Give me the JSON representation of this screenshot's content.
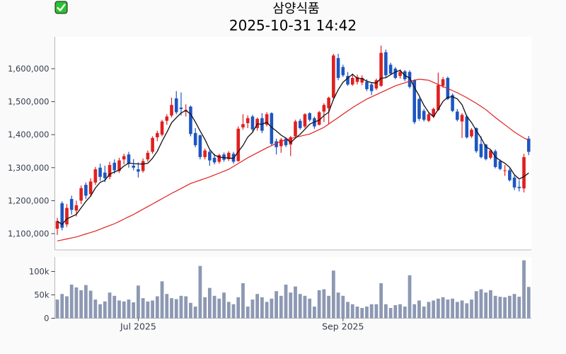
{
  "header": {
    "title": "삼양식품",
    "checkbox_icon": "white-check-on-green-square",
    "datetime": "2025-10-31 14:42"
  },
  "colors": {
    "up_candle": "#e01f1f",
    "down_candle": "#1e56c0",
    "ma_short": "#111111",
    "ma_long": "#e02020",
    "volume_bar": "#8d98b3",
    "plot_bg": "#ffffff",
    "page_bg": "#fafafa",
    "spine": "#b8b8b8",
    "tick_mark": "#444444",
    "tick_text": "#363c4e",
    "check_green": "#28c32d"
  },
  "chart_data": {
    "type": "candlestick+volume",
    "symbol": "삼양식품",
    "as_of": "2025-10-31 14:42",
    "legend_position": "none",
    "grid": false,
    "price_axis": {
      "ticks": [
        1600000,
        1500000,
        1400000,
        1300000,
        1200000,
        1100000
      ],
      "tick_labels": [
        "1,600,000",
        "1,500,000",
        "1,400,000",
        "1,300,000",
        "1,200,000",
        "1,100,000"
      ],
      "range": [
        1055000,
        1690000
      ]
    },
    "volume_axis": {
      "ticks": [
        100000,
        50000,
        0
      ],
      "tick_labels": [
        "100k",
        "50k",
        "0"
      ],
      "range": [
        0,
        131000
      ]
    },
    "x_axis": {
      "tick_labels": [
        "Jul 2025",
        "Sep 2025"
      ],
      "tick_candle_index": [
        17,
        60
      ]
    },
    "ma_short_window": 5,
    "ma_long_window": 20,
    "ma_long_anchors": [
      [
        0,
        1078000
      ],
      [
        4,
        1090000
      ],
      [
        8,
        1108000
      ],
      [
        12,
        1130000
      ],
      [
        16,
        1158000
      ],
      [
        20,
        1190000
      ],
      [
        24,
        1222000
      ],
      [
        28,
        1252000
      ],
      [
        32,
        1272000
      ],
      [
        36,
        1295000
      ],
      [
        40,
        1330000
      ],
      [
        44,
        1360000
      ],
      [
        47,
        1380000
      ],
      [
        50,
        1392000
      ],
      [
        53,
        1402000
      ],
      [
        56,
        1422000
      ],
      [
        58,
        1442000
      ],
      [
        60,
        1462000
      ],
      [
        62,
        1482000
      ],
      [
        65,
        1508000
      ],
      [
        68,
        1528000
      ],
      [
        71,
        1548000
      ],
      [
        74,
        1562000
      ],
      [
        76,
        1568000
      ],
      [
        78,
        1565000
      ],
      [
        80,
        1552000
      ],
      [
        82,
        1540000
      ],
      [
        84,
        1527000
      ],
      [
        86,
        1512000
      ],
      [
        88,
        1495000
      ],
      [
        90,
        1476000
      ],
      [
        92,
        1452000
      ],
      [
        94,
        1430000
      ],
      [
        96,
        1408000
      ],
      [
        98,
        1390000
      ],
      [
        99,
        1383000
      ]
    ],
    "candles_format": [
      "open",
      "high",
      "low",
      "close",
      "volume"
    ],
    "candles": [
      [
        1115000,
        1148000,
        1096000,
        1138000,
        40000
      ],
      [
        1192000,
        1198000,
        1110000,
        1118000,
        52000
      ],
      [
        1128000,
        1190000,
        1120000,
        1178000,
        47000
      ],
      [
        1205000,
        1215000,
        1158000,
        1172000,
        72000
      ],
      [
        1170000,
        1200000,
        1152000,
        1186000,
        66000
      ],
      [
        1200000,
        1246000,
        1190000,
        1238000,
        60000
      ],
      [
        1248000,
        1255000,
        1205000,
        1215000,
        71000
      ],
      [
        1220000,
        1268000,
        1212000,
        1258000,
        59000
      ],
      [
        1255000,
        1302000,
        1248000,
        1295000,
        40000
      ],
      [
        1300000,
        1312000,
        1260000,
        1272000,
        30000
      ],
      [
        1285000,
        1306000,
        1256000,
        1268000,
        36000
      ],
      [
        1272000,
        1318000,
        1265000,
        1308000,
        55000
      ],
      [
        1315000,
        1325000,
        1282000,
        1292000,
        48000
      ],
      [
        1290000,
        1330000,
        1284000,
        1322000,
        38000
      ],
      [
        1325000,
        1342000,
        1310000,
        1335000,
        36000
      ],
      [
        1340000,
        1348000,
        1300000,
        1312000,
        40000
      ],
      [
        1306000,
        1326000,
        1292000,
        1300000,
        34000
      ],
      [
        1295000,
        1316000,
        1270000,
        1288000,
        70000
      ],
      [
        1290000,
        1328000,
        1285000,
        1320000,
        43000
      ],
      [
        1325000,
        1352000,
        1318000,
        1345000,
        36000
      ],
      [
        1348000,
        1395000,
        1342000,
        1390000,
        38000
      ],
      [
        1392000,
        1412000,
        1380000,
        1405000,
        47000
      ],
      [
        1400000,
        1445000,
        1395000,
        1440000,
        79000
      ],
      [
        1442000,
        1462000,
        1430000,
        1455000,
        52000
      ],
      [
        1458000,
        1512000,
        1452000,
        1490000,
        43000
      ],
      [
        1510000,
        1532000,
        1462000,
        1468000,
        41000
      ],
      [
        1482000,
        1528000,
        1458000,
        1478000,
        48000
      ],
      [
        1470000,
        1492000,
        1455000,
        1475000,
        47000
      ],
      [
        1485000,
        1488000,
        1395000,
        1402000,
        33000
      ],
      [
        1405000,
        1420000,
        1362000,
        1368000,
        25000
      ],
      [
        1398000,
        1400000,
        1325000,
        1332000,
        112000
      ],
      [
        1332000,
        1358000,
        1325000,
        1352000,
        45000
      ],
      [
        1348000,
        1352000,
        1306000,
        1322000,
        65000
      ],
      [
        1330000,
        1342000,
        1310000,
        1316000,
        48000
      ],
      [
        1318000,
        1342000,
        1312000,
        1338000,
        42000
      ],
      [
        1340000,
        1346000,
        1318000,
        1324000,
        55000
      ],
      [
        1326000,
        1350000,
        1320000,
        1345000,
        35000
      ],
      [
        1342000,
        1348000,
        1312000,
        1318000,
        30000
      ],
      [
        1320000,
        1425000,
        1318000,
        1418000,
        45000
      ],
      [
        1422000,
        1462000,
        1415000,
        1432000,
        75000
      ],
      [
        1435000,
        1458000,
        1420000,
        1450000,
        25000
      ],
      [
        1455000,
        1460000,
        1410000,
        1416000,
        40000
      ],
      [
        1420000,
        1452000,
        1412000,
        1448000,
        52000
      ],
      [
        1450000,
        1465000,
        1405000,
        1412000,
        45000
      ],
      [
        1430000,
        1468000,
        1425000,
        1462000,
        35000
      ],
      [
        1465000,
        1468000,
        1368000,
        1372000,
        42000
      ],
      [
        1380000,
        1388000,
        1340000,
        1362000,
        58000
      ],
      [
        1365000,
        1390000,
        1345000,
        1385000,
        48000
      ],
      [
        1388000,
        1392000,
        1362000,
        1368000,
        72000
      ],
      [
        1370000,
        1396000,
        1335000,
        1392000,
        55000
      ],
      [
        1395000,
        1445000,
        1390000,
        1440000,
        68000
      ],
      [
        1442000,
        1448000,
        1415000,
        1420000,
        52000
      ],
      [
        1425000,
        1465000,
        1420000,
        1462000,
        48000
      ],
      [
        1465000,
        1468000,
        1440000,
        1445000,
        42000
      ],
      [
        1450000,
        1455000,
        1418000,
        1425000,
        25000
      ],
      [
        1430000,
        1472000,
        1428000,
        1468000,
        60000
      ],
      [
        1470000,
        1495000,
        1438000,
        1490000,
        62000
      ],
      [
        1480000,
        1515000,
        1432000,
        1512000,
        48000
      ],
      [
        1512000,
        1645000,
        1505000,
        1640000,
        102000
      ],
      [
        1632000,
        1645000,
        1565000,
        1572000,
        55000
      ],
      [
        1605000,
        1612000,
        1575000,
        1580000,
        48000
      ],
      [
        1578000,
        1590000,
        1548000,
        1552000,
        35000
      ],
      [
        1552000,
        1585000,
        1548000,
        1572000,
        30000
      ],
      [
        1560000,
        1582000,
        1552000,
        1575000,
        25000
      ],
      [
        1558000,
        1580000,
        1550000,
        1572000,
        22000
      ],
      [
        1560000,
        1568000,
        1532000,
        1538000,
        25000
      ],
      [
        1552000,
        1558000,
        1520000,
        1532000,
        30000
      ],
      [
        1540000,
        1570000,
        1535000,
        1565000,
        30000
      ],
      [
        1548000,
        1670000,
        1545000,
        1648000,
        75000
      ],
      [
        1650000,
        1658000,
        1572000,
        1580000,
        30000
      ],
      [
        1612000,
        1618000,
        1580000,
        1585000,
        22000
      ],
      [
        1600000,
        1605000,
        1568000,
        1572000,
        28000
      ],
      [
        1578000,
        1598000,
        1570000,
        1590000,
        30000
      ],
      [
        1592000,
        1596000,
        1562000,
        1568000,
        25000
      ],
      [
        1590000,
        1595000,
        1540000,
        1545000,
        92000
      ],
      [
        1565000,
        1568000,
        1432000,
        1438000,
        30000
      ],
      [
        1508000,
        1512000,
        1442000,
        1448000,
        38000
      ],
      [
        1472000,
        1478000,
        1440000,
        1445000,
        25000
      ],
      [
        1442000,
        1468000,
        1438000,
        1462000,
        35000
      ],
      [
        1455000,
        1482000,
        1450000,
        1478000,
        38000
      ],
      [
        1475000,
        1588000,
        1472000,
        1550000,
        42000
      ],
      [
        1548000,
        1575000,
        1542000,
        1568000,
        45000
      ],
      [
        1572000,
        1576000,
        1505000,
        1508000,
        40000
      ],
      [
        1520000,
        1525000,
        1468000,
        1472000,
        42000
      ],
      [
        1470000,
        1478000,
        1440000,
        1445000,
        35000
      ],
      [
        1440000,
        1465000,
        1390000,
        1460000,
        38000
      ],
      [
        1455000,
        1460000,
        1388000,
        1392000,
        32000
      ],
      [
        1395000,
        1420000,
        1390000,
        1415000,
        40000
      ],
      [
        1420000,
        1422000,
        1345000,
        1350000,
        58000
      ],
      [
        1372000,
        1395000,
        1328000,
        1332000,
        62000
      ],
      [
        1370000,
        1372000,
        1322000,
        1326000,
        55000
      ],
      [
        1330000,
        1356000,
        1325000,
        1352000,
        60000
      ],
      [
        1350000,
        1355000,
        1298000,
        1302000,
        48000
      ],
      [
        1320000,
        1325000,
        1292000,
        1296000,
        46000
      ],
      [
        1290000,
        1308000,
        1275000,
        1292000,
        45000
      ],
      [
        1292000,
        1298000,
        1258000,
        1262000,
        48000
      ],
      [
        1270000,
        1276000,
        1232000,
        1240000,
        52000
      ],
      [
        1242000,
        1262000,
        1228000,
        1238000,
        46000
      ],
      [
        1237000,
        1342000,
        1225000,
        1332000,
        124000
      ],
      [
        1388000,
        1396000,
        1338000,
        1348000,
        67000
      ]
    ]
  }
}
